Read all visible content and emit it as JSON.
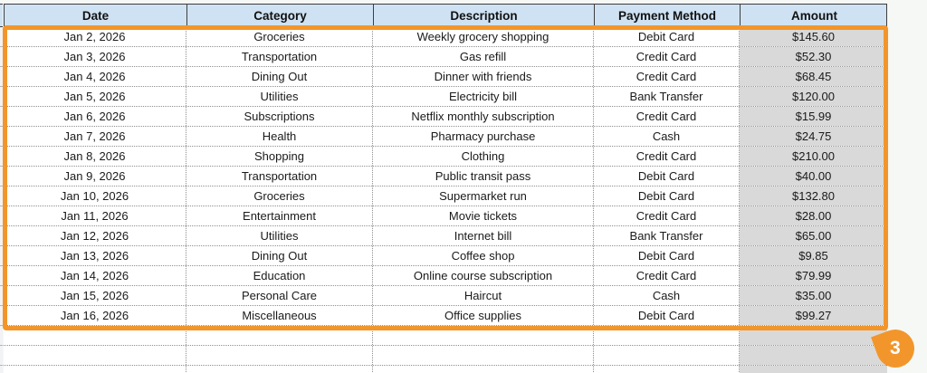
{
  "table": {
    "columns": [
      "Date",
      "Category",
      "Description",
      "Payment Method",
      "Amount"
    ],
    "rows": [
      [
        "Jan 2, 2026",
        "Groceries",
        "Weekly grocery shopping",
        "Debit Card",
        "$145.60"
      ],
      [
        "Jan 3, 2026",
        "Transportation",
        "Gas refill",
        "Credit Card",
        "$52.30"
      ],
      [
        "Jan 4, 2026",
        "Dining Out",
        "Dinner with friends",
        "Credit Card",
        "$68.45"
      ],
      [
        "Jan 5, 2026",
        "Utilities",
        "Electricity bill",
        "Bank Transfer",
        "$120.00"
      ],
      [
        "Jan 6, 2026",
        "Subscriptions",
        "Netflix monthly subscription",
        "Credit Card",
        "$15.99"
      ],
      [
        "Jan 7, 2026",
        "Health",
        "Pharmacy purchase",
        "Cash",
        "$24.75"
      ],
      [
        "Jan 8, 2026",
        "Shopping",
        "Clothing",
        "Credit Card",
        "$210.00"
      ],
      [
        "Jan 9, 2026",
        "Transportation",
        "Public transit pass",
        "Debit Card",
        "$40.00"
      ],
      [
        "Jan 10, 2026",
        "Groceries",
        "Supermarket run",
        "Debit Card",
        "$132.80"
      ],
      [
        "Jan 11, 2026",
        "Entertainment",
        "Movie tickets",
        "Credit Card",
        "$28.00"
      ],
      [
        "Jan 12, 2026",
        "Utilities",
        "Internet bill",
        "Bank Transfer",
        "$65.00"
      ],
      [
        "Jan 13, 2026",
        "Dining Out",
        "Coffee shop",
        "Debit Card",
        "$9.85"
      ],
      [
        "Jan 14, 2026",
        "Education",
        "Online course subscription",
        "Credit Card",
        "$79.99"
      ],
      [
        "Jan 15, 2026",
        "Personal Care",
        "Haircut",
        "Cash",
        "$35.00"
      ],
      [
        "Jan 16, 2026",
        "Miscellaneous",
        "Office supplies",
        "Debit Card",
        "$99.27"
      ]
    ],
    "empty_row_count": 3
  },
  "annotation": {
    "badge_label": "3"
  },
  "colors": {
    "selection_orange": "#f2962b",
    "header_bg": "#cfe2f3",
    "amount_col_bg": "#d9d9d9",
    "page_bg": "#f6f8f5"
  }
}
